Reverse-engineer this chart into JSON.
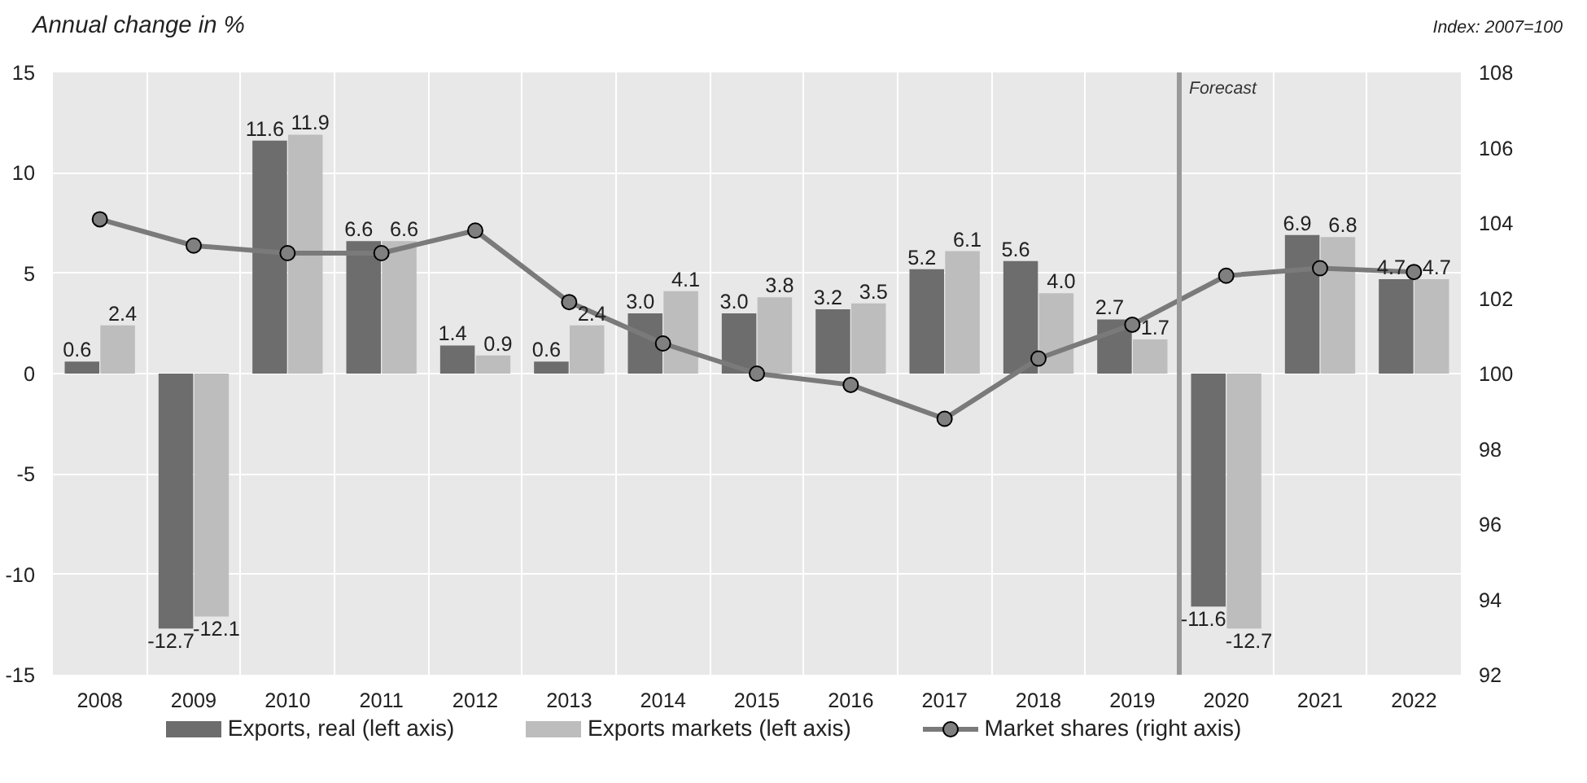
{
  "chart_data": {
    "type": "bar",
    "ylabel": "Annual change in %",
    "y2label": "Index: 2007=100",
    "x": [
      2008,
      2009,
      2010,
      2011,
      2012,
      2013,
      2014,
      2015,
      2016,
      2017,
      2018,
      2019,
      2020,
      2021,
      2022
    ],
    "xlim": [
      2007.5,
      2022.5
    ],
    "xticks": [
      2008,
      2009,
      2010,
      2011,
      2012,
      2013,
      2014,
      2015,
      2016,
      2017,
      2018,
      2019,
      2020,
      2021,
      2022
    ],
    "ylim": [
      -15,
      15
    ],
    "yticks": [
      -15,
      -10,
      -5,
      0,
      5,
      10,
      15
    ],
    "y2lim": [
      92,
      108
    ],
    "y2ticks": [
      92,
      94,
      96,
      98,
      100,
      102,
      104,
      106,
      108
    ],
    "series": [
      {
        "name": "Exports, real (left axis)",
        "color": "#6d6d6d",
        "values": [
          0.6,
          -12.7,
          11.6,
          6.6,
          1.4,
          0.6,
          3.0,
          3.0,
          3.2,
          5.2,
          5.6,
          2.7,
          -11.6,
          6.9,
          4.7
        ],
        "value_labels": [
          "0.6",
          "-12.7",
          "11.6",
          "6.6",
          "1.4",
          "0.6",
          "3.0",
          "3.0",
          "3.2",
          "5.2",
          "5.6",
          "2.7",
          "-11.6",
          "6.9",
          "4.7"
        ]
      },
      {
        "name": "Exports markets (left axis)",
        "color": "#bdbdbd",
        "values": [
          2.4,
          -12.1,
          11.9,
          6.6,
          0.9,
          2.4,
          4.1,
          3.8,
          3.5,
          6.1,
          4.0,
          1.7,
          -12.7,
          6.8,
          4.7
        ],
        "value_labels": [
          "2.4",
          "-12.1",
          "11.9",
          "6.6",
          "0.9",
          "2.4",
          "4.1",
          "3.8",
          "3.5",
          "6.1",
          "4.0",
          "1.7",
          "-12.7",
          "6.8",
          "4.7"
        ]
      },
      {
        "name": "Market shares (right axis)",
        "type": "line",
        "axis": "y2",
        "color": "#7a7a7a",
        "marker": "circle",
        "values": [
          104.1,
          103.4,
          103.2,
          103.2,
          103.8,
          101.9,
          100.8,
          100.0,
          99.7,
          98.8,
          100.4,
          101.3,
          102.6,
          102.8,
          102.7
        ]
      }
    ],
    "ref_lines": [
      {
        "axis": "x",
        "value": 2019.5,
        "label": "Forecast",
        "color": "#999999"
      }
    ],
    "grid": true,
    "legend": "bottom"
  }
}
